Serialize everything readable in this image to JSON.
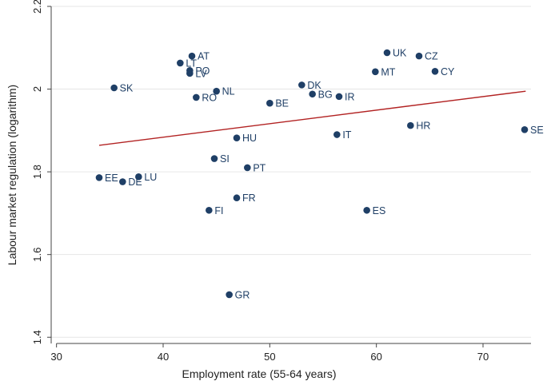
{
  "chart_data": {
    "type": "scatter",
    "title": "",
    "xlabel": "Employment rate (55-64 years)",
    "ylabel": "Labour market regulation (logarithm)",
    "xlim": [
      29.5,
      74.5
    ],
    "ylim": [
      1.385,
      2.2
    ],
    "xticks": [
      30,
      40,
      50,
      60,
      70
    ],
    "yticks": [
      1.4,
      1.6,
      1.8,
      2,
      2.2
    ],
    "xtick_labels": [
      "30",
      "40",
      "50",
      "60",
      "70"
    ],
    "ytick_labels": [
      "1.4",
      "1.6",
      "1.8",
      "2",
      "2.2"
    ],
    "grid": "horizontal",
    "colors": {
      "points": "#1f3f66",
      "labels": "#1f3f66",
      "fit_line": "#b22222",
      "grid": "#e6e6e6",
      "axis": "#444444"
    },
    "points": [
      {
        "label": "AT",
        "x": 42.7,
        "y": 2.08
      },
      {
        "label": "LT",
        "x": 41.6,
        "y": 2.063
      },
      {
        "label": "PO",
        "x": 42.5,
        "y": 2.045
      },
      {
        "label": "LV",
        "x": 42.5,
        "y": 2.038
      },
      {
        "label": "UK",
        "x": 61.0,
        "y": 2.088
      },
      {
        "label": "CZ",
        "x": 64.0,
        "y": 2.08
      },
      {
        "label": "MT",
        "x": 59.9,
        "y": 2.042
      },
      {
        "label": "CY",
        "x": 65.5,
        "y": 2.043
      },
      {
        "label": "SK",
        "x": 35.4,
        "y": 2.003
      },
      {
        "label": "NL",
        "x": 45.0,
        "y": 1.995
      },
      {
        "label": "RO",
        "x": 43.1,
        "y": 1.98
      },
      {
        "label": "DK",
        "x": 53.0,
        "y": 2.01
      },
      {
        "label": "BG",
        "x": 54.0,
        "y": 1.988
      },
      {
        "label": "IR",
        "x": 56.5,
        "y": 1.982
      },
      {
        "label": "BE",
        "x": 50.0,
        "y": 1.966
      },
      {
        "label": "HR",
        "x": 63.2,
        "y": 1.912
      },
      {
        "label": "SE",
        "x": 73.9,
        "y": 1.902
      },
      {
        "label": "HU",
        "x": 46.9,
        "y": 1.882
      },
      {
        "label": "IT",
        "x": 56.3,
        "y": 1.89
      },
      {
        "label": "SI",
        "x": 44.8,
        "y": 1.832
      },
      {
        "label": "PT",
        "x": 47.9,
        "y": 1.81
      },
      {
        "label": "EE",
        "x": 34.0,
        "y": 1.786
      },
      {
        "label": "DE",
        "x": 36.2,
        "y": 1.776
      },
      {
        "label": "LU",
        "x": 37.7,
        "y": 1.788
      },
      {
        "label": "FR",
        "x": 46.9,
        "y": 1.737
      },
      {
        "label": "FI",
        "x": 44.3,
        "y": 1.707
      },
      {
        "label": "ES",
        "x": 59.1,
        "y": 1.707
      },
      {
        "label": "GR",
        "x": 46.2,
        "y": 1.503
      }
    ],
    "fit_line": {
      "x": [
        34.0,
        74.0
      ],
      "y": [
        1.864,
        1.995
      ]
    }
  }
}
